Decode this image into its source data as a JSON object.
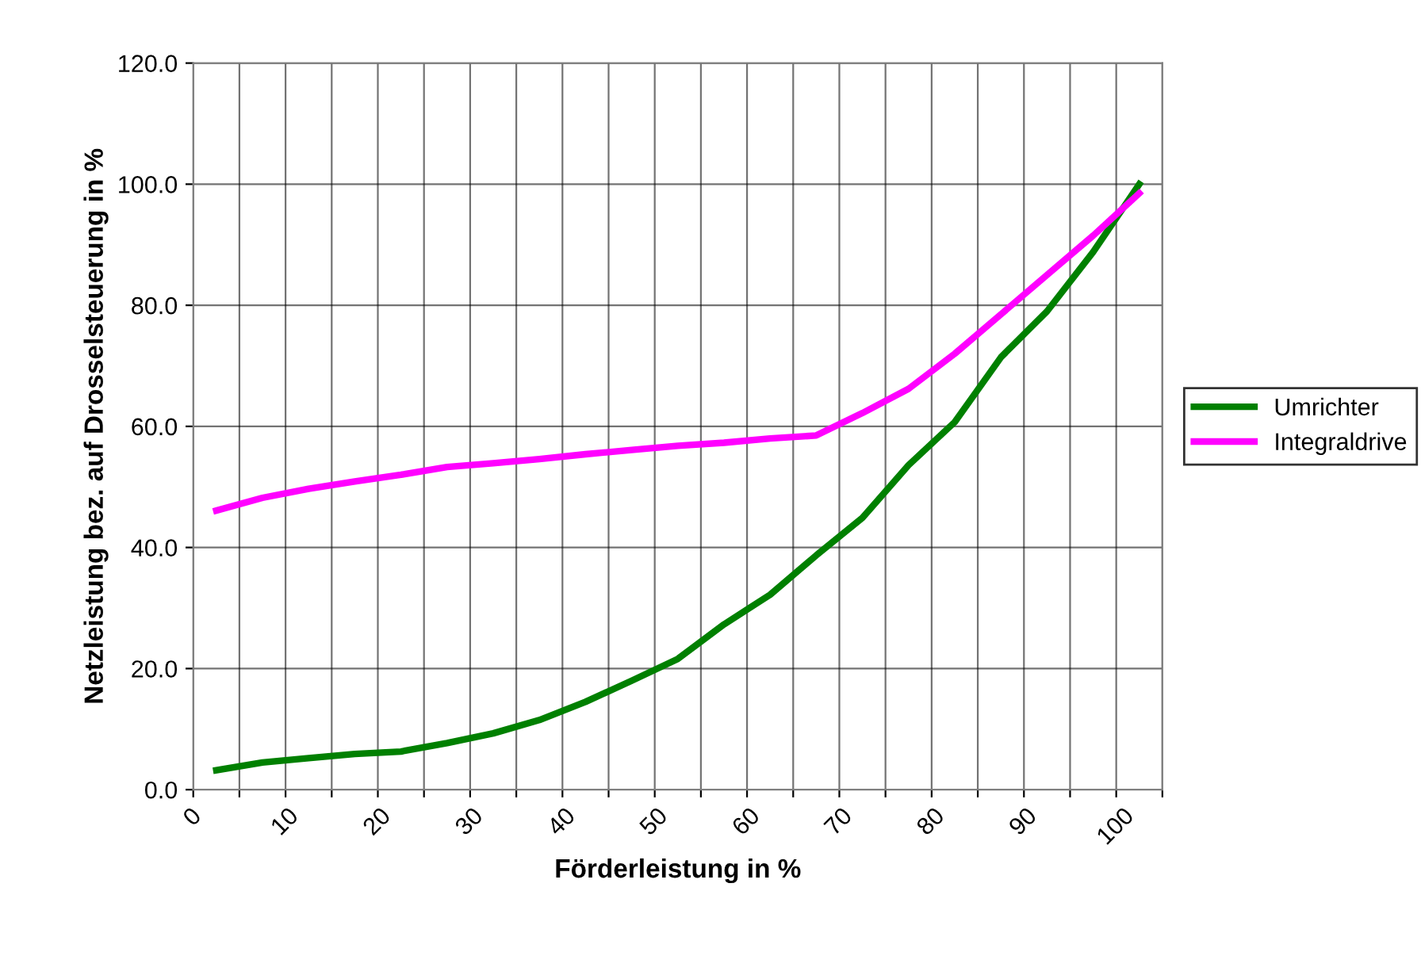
{
  "chart_data": {
    "type": "line",
    "xlabel": "Förderleistung in %",
    "ylabel": "Netzleistung bez. auf Drosselsteuerung in %",
    "x": [
      2.5,
      7.5,
      12.5,
      17.5,
      22.5,
      27.5,
      32.5,
      37.5,
      42.5,
      47.5,
      52.5,
      57.5,
      62.5,
      67.5,
      72.5,
      77.5,
      82.5,
      87.5,
      92.5,
      97.5,
      102.5
    ],
    "series": [
      {
        "name": "Umrichter",
        "color": "#008000",
        "values": [
          3.2,
          4.5,
          5.2,
          5.9,
          6.3,
          7.7,
          9.3,
          11.5,
          14.5,
          18.0,
          21.6,
          27.3,
          32.2,
          38.7,
          44.9,
          53.6,
          60.7,
          71.4,
          79.0,
          88.8,
          100.0
        ]
      },
      {
        "name": "Integraldrive",
        "color": "#ff00ff",
        "values": [
          46.1,
          48.2,
          49.7,
          50.9,
          52.0,
          53.3,
          53.9,
          54.6,
          55.4,
          56.1,
          56.8,
          57.3,
          58.0,
          58.5,
          62.2,
          66.2,
          72.0,
          78.5,
          85.0,
          91.5,
          98.5
        ]
      }
    ],
    "xlim": [
      0,
      105
    ],
    "xticks": [
      0,
      {
        "value": 5,
        "label": null
      },
      10,
      {
        "value": 15,
        "label": null
      },
      20,
      {
        "value": 25,
        "label": null
      },
      30,
      {
        "value": 35,
        "label": null
      },
      40,
      {
        "value": 45,
        "label": null
      },
      50,
      {
        "value": 55,
        "label": null
      },
      60,
      {
        "value": 65,
        "label": null
      },
      70,
      {
        "value": 75,
        "label": null
      },
      80,
      {
        "value": 85,
        "label": null
      },
      90,
      {
        "value": 95,
        "label": null
      },
      100,
      {
        "value": 105,
        "label": null
      }
    ],
    "ylim": [
      0,
      120
    ],
    "yticks": [
      {
        "value": 0,
        "label": "0.0"
      },
      {
        "value": 20,
        "label": "20.0"
      },
      {
        "value": 40,
        "label": "40.0"
      },
      {
        "value": 60,
        "label": "60.0"
      },
      {
        "value": 80,
        "label": "80.0"
      },
      {
        "value": 100,
        "label": "100.0"
      },
      {
        "value": 120,
        "label": "120.0"
      }
    ],
    "grid": true,
    "legend": "right",
    "marker": "none",
    "line_style": "solid"
  }
}
